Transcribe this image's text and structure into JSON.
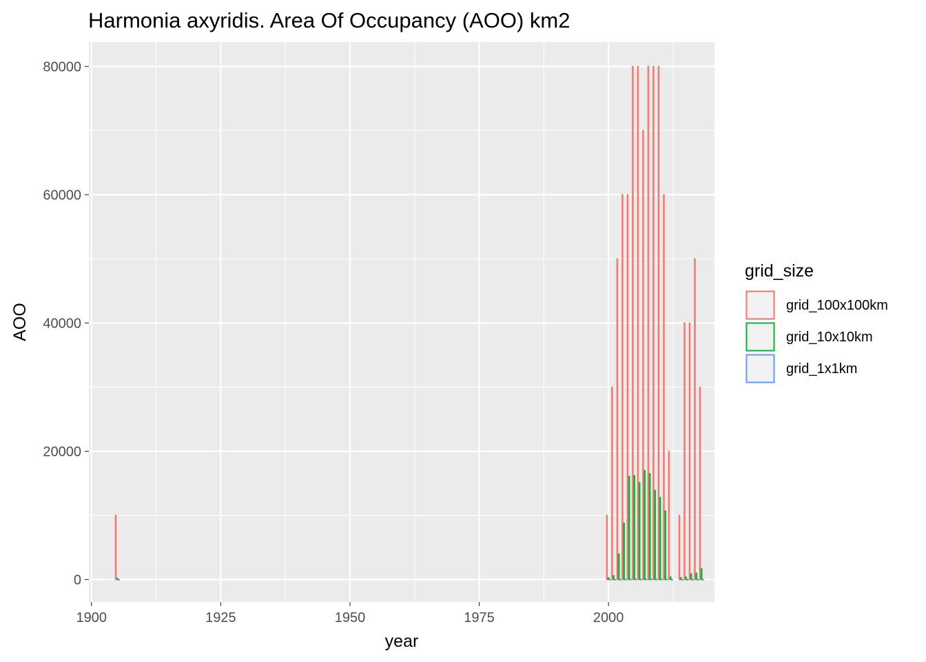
{
  "chart_data": {
    "type": "bar",
    "title": "Harmonia axyridis. Area Of Occupancy (AOO) km2",
    "xlabel": "year",
    "ylabel": "AOO",
    "xlim": [
      1899.5,
      2020.5
    ],
    "ylim": [
      -3500,
      83800
    ],
    "x_ticks": [
      1900,
      1925,
      1950,
      1975,
      2000
    ],
    "x_tick_labels": [
      "1900",
      "1925",
      "1950",
      "1975",
      "2000"
    ],
    "x_minor_ticks": [
      1912.5,
      1937.5,
      1962.5,
      1987.5,
      2012.5
    ],
    "y_ticks": [
      0,
      20000,
      40000,
      60000,
      80000
    ],
    "y_tick_labels": [
      "0",
      "20000",
      "40000",
      "60000",
      "80000"
    ],
    "y_minor_ticks": [
      10000,
      30000,
      50000,
      70000
    ],
    "grid": true,
    "legend": {
      "title": "grid_size",
      "position": "right",
      "items": [
        "grid_100x100km",
        "grid_10x10km",
        "grid_1x1km"
      ]
    },
    "colors": {
      "grid_100x100km": "#F8766D",
      "grid_10x10km": "#00BA38",
      "grid_1x1km": "#619CFF",
      "panel_background": "#EBEBEB",
      "gridline": "#FFFFFF"
    },
    "x": [
      1905,
      2000,
      2001,
      2002,
      2003,
      2004,
      2005,
      2006,
      2007,
      2008,
      2009,
      2010,
      2011,
      2012,
      2014,
      2015,
      2016,
      2017,
      2018
    ],
    "series": [
      {
        "name": "grid_100x100km",
        "values": [
          10000,
          10000,
          30000,
          50000,
          60000,
          60000,
          80000,
          80000,
          70000,
          80000,
          80000,
          80000,
          60000,
          20000,
          10000,
          40000,
          40000,
          50000,
          30000
        ]
      },
      {
        "name": "grid_10x10km",
        "values": [
          200,
          300,
          600,
          4000,
          8800,
          16100,
          16200,
          15100,
          17000,
          16500,
          13900,
          12800,
          10700,
          400,
          300,
          400,
          900,
          1000,
          1700
        ]
      },
      {
        "name": "grid_1x1km",
        "values": [
          20,
          15,
          25,
          30,
          35,
          60,
          70,
          60,
          80,
          75,
          60,
          55,
          50,
          15,
          10,
          12,
          20,
          25,
          30
        ]
      }
    ]
  }
}
